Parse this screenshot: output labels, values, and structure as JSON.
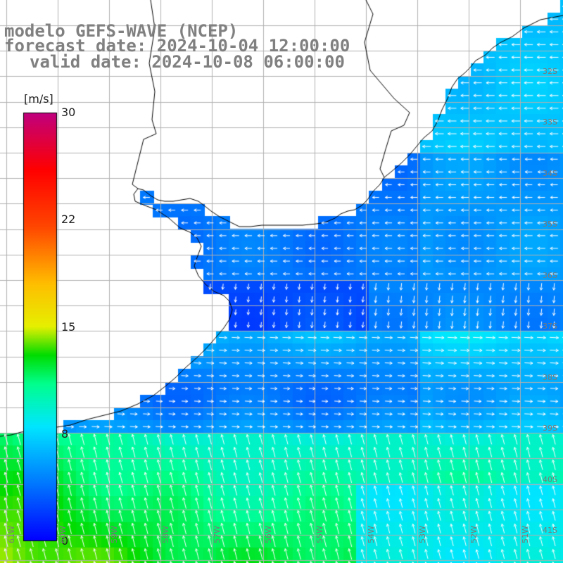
{
  "title": {
    "model": "modelo GEFS-WAVE (NCEP)",
    "forecast": "forecast date: 2024-10-04 12:00:00",
    "valid": "valid date: 2024-10-08 06:00:00"
  },
  "colorbar": {
    "unit": "[m/s]",
    "ticks": [
      "30",
      "22",
      "15",
      "8",
      "0"
    ],
    "tick_values": [
      30,
      22,
      15,
      8,
      0
    ],
    "colors": [
      "#0000ff",
      "#00e5ff",
      "#00ff00",
      "#ffff00",
      "#ff0000",
      "#c0007f"
    ]
  },
  "map": {
    "lat_labels": [
      "32S",
      "33S",
      "34S",
      "35S",
      "36S",
      "37S",
      "38S",
      "39S",
      "40S",
      "41S"
    ],
    "lon_labels": [
      "61W",
      "60W",
      "59W",
      "58W",
      "57W",
      "56W",
      "55W",
      "54W",
      "53W",
      "52W",
      "51W"
    ],
    "land_color": "#ffffff",
    "grid_color": "#b0b0b0",
    "coast_color": "#000000",
    "arrow_color": "#ffffff"
  }
}
